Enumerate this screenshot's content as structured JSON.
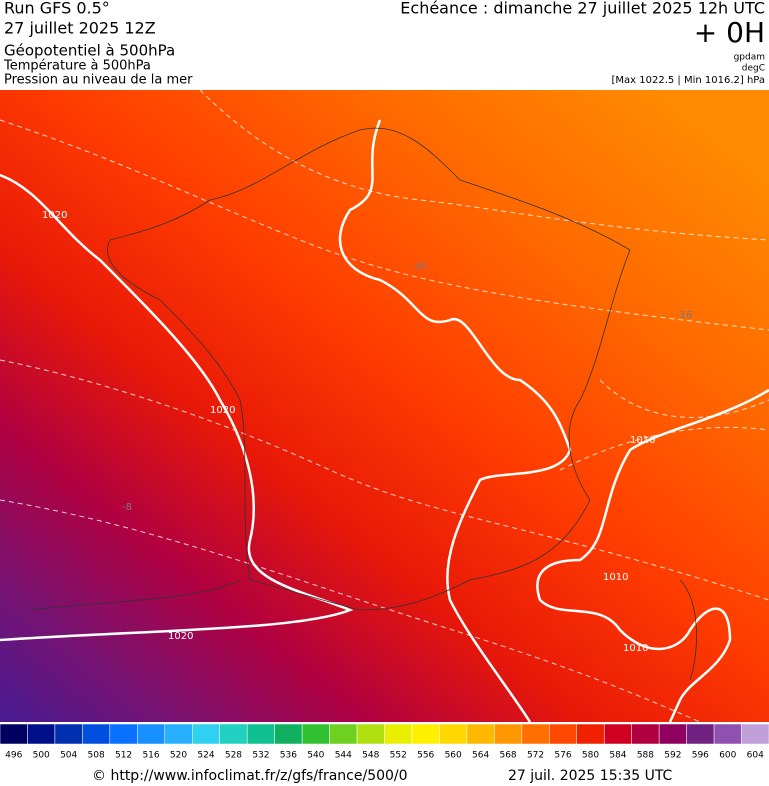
{
  "header": {
    "title": "Run GFS 0.5°",
    "run": "27 juillet 2025 12Z",
    "layer1": "Géopotentiel à 500hPa",
    "layer2": "Température à 500hPa",
    "layer3": "Pression au niveau de la mer",
    "forecast": "Echéance : dimanche 27 juillet 2025 12h UTC",
    "offset": "+ 0H",
    "unit1": "gpdam",
    "unit2": "degC",
    "range": "[Max 1022.5 | Min 1016.2] hPa"
  },
  "map": {
    "contour_labels": [
      "1020",
      "1020",
      "1020",
      "1010",
      "1010",
      "1010",
      "-16",
      "-16",
      "-8"
    ]
  },
  "scale": {
    "ticks": [
      496,
      500,
      504,
      508,
      512,
      516,
      520,
      524,
      528,
      532,
      536,
      540,
      544,
      548,
      552,
      556,
      560,
      564,
      568,
      572,
      576,
      580,
      584,
      588,
      592,
      596,
      600,
      604
    ],
    "colors": [
      "#000060",
      "#00108a",
      "#0030b0",
      "#0050e0",
      "#0a70ff",
      "#1890ff",
      "#28b0ff",
      "#30d0f0",
      "#20d0c0",
      "#10c090",
      "#10b060",
      "#30c030",
      "#70d020",
      "#b0e010",
      "#e8f000",
      "#fff000",
      "#ffd800",
      "#ffb800",
      "#ff9800",
      "#ff7000",
      "#ff4800",
      "#f02000",
      "#d00020",
      "#b00040",
      "#900060",
      "#702080",
      "#9050b0",
      "#c0a0d8"
    ]
  },
  "footer": {
    "url": "© http://www.infoclimat.fr/z/gfs/france/500/0",
    "timestamp": "27 juil. 2025 15:35 UTC"
  }
}
